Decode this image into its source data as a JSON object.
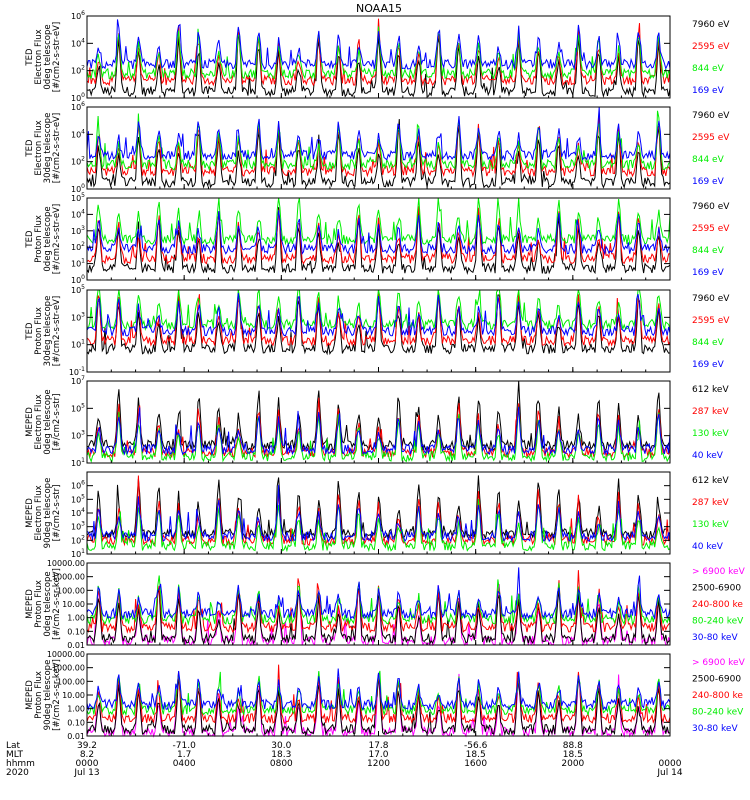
{
  "title": "NOAA15",
  "colors": {
    "black": "#000000",
    "blue": "#0000ff",
    "green": "#00ee00",
    "red": "#ff0000",
    "magenta": "#ff00ff"
  },
  "chart_data": [
    {
      "type": "line",
      "ylabel": [
        "TED",
        "Electron Flux",
        "0deg telescope",
        "[#/cm2-s-str-eV]"
      ],
      "yscale": "log",
      "ylim": [
        1,
        1000000
      ],
      "yticks": [
        {
          "v": 1,
          "e": "0"
        },
        {
          "v": 100,
          "e": "2"
        },
        {
          "v": 10000,
          "e": "4"
        },
        {
          "v": 1000000,
          "e": "6"
        }
      ],
      "series": [
        {
          "name": "7960 eV",
          "color": "black",
          "base": 3
        },
        {
          "name": "2595 eV",
          "color": "red",
          "base": 20
        },
        {
          "name": "844 eV",
          "color": "green",
          "base": 60
        },
        {
          "name": "169 eV",
          "color": "blue",
          "base": 300
        }
      ]
    },
    {
      "type": "line",
      "ylabel": [
        "TED",
        "Electron Flux",
        "30deg telescope",
        "[#/cm2-s-str-eV]"
      ],
      "yscale": "log",
      "ylim": [
        1,
        1000000
      ],
      "yticks": [
        {
          "v": 1,
          "e": "0"
        },
        {
          "v": 100,
          "e": "2"
        },
        {
          "v": 10000,
          "e": "4"
        },
        {
          "v": 1000000,
          "e": "6"
        }
      ],
      "series": [
        {
          "name": "7960 eV",
          "color": "black",
          "base": 3
        },
        {
          "name": "2595 eV",
          "color": "red",
          "base": 20
        },
        {
          "name": "844 eV",
          "color": "green",
          "base": 60
        },
        {
          "name": "169 eV",
          "color": "blue",
          "base": 300
        }
      ]
    },
    {
      "type": "line",
      "ylabel": [
        "TED",
        "Proton Flux",
        "0deg telescope",
        "[#/cm2-s-str-eV]"
      ],
      "yscale": "log",
      "ylim": [
        1,
        100000
      ],
      "yticks": [
        {
          "v": 1,
          "e": "0"
        },
        {
          "v": 10,
          "e": "1"
        },
        {
          "v": 100,
          "e": "2"
        },
        {
          "v": 1000,
          "e": "3"
        },
        {
          "v": 10000,
          "e": "4"
        },
        {
          "v": 100000,
          "e": "5"
        }
      ],
      "series": [
        {
          "name": "7960 eV",
          "color": "black",
          "base": 5
        },
        {
          "name": "2595 eV",
          "color": "red",
          "base": 20
        },
        {
          "name": "844 eV",
          "color": "green",
          "base": 300
        },
        {
          "name": "169 eV",
          "color": "blue",
          "base": 80
        }
      ]
    },
    {
      "type": "line",
      "ylabel": [
        "TED",
        "Proton Flux",
        "30deg telescope",
        "[#/cm2-s-str-eV]"
      ],
      "yscale": "log",
      "ylim": [
        0.1,
        100000
      ],
      "yticks": [
        {
          "v": 0.1,
          "e": "-1"
        },
        {
          "v": 10,
          "e": "1"
        },
        {
          "v": 1000,
          "e": "3"
        },
        {
          "v": 100000,
          "e": "5"
        }
      ],
      "series": [
        {
          "name": "7960 eV",
          "color": "black",
          "base": 5
        },
        {
          "name": "2595 eV",
          "color": "red",
          "base": 20
        },
        {
          "name": "844 eV",
          "color": "green",
          "base": 300
        },
        {
          "name": "169 eV",
          "color": "blue",
          "base": 100
        }
      ]
    },
    {
      "type": "line",
      "ylabel": [
        "MEPED",
        "Electron Flux",
        "0deg telescope",
        "[#/cm2-s-str]"
      ],
      "yscale": "log",
      "ylim": [
        10,
        10000000
      ],
      "yticks": [
        {
          "v": 10,
          "e": "1"
        },
        {
          "v": 1000,
          "e": "3"
        },
        {
          "v": 100000,
          "e": "5"
        },
        {
          "v": 10000000,
          "e": "7"
        }
      ],
      "series": [
        {
          "name": "612 keV",
          "color": "black",
          "base": 200
        },
        {
          "name": "287 keV",
          "color": "red",
          "base": 60
        },
        {
          "name": "130 keV",
          "color": "green",
          "base": 30
        },
        {
          "name": "40 keV",
          "color": "blue",
          "base": 100
        }
      ]
    },
    {
      "type": "line",
      "ylabel": [
        "MEPED",
        "Electron Flux",
        "90deg telescope",
        "[#/cm2-s-str]"
      ],
      "yscale": "log",
      "ylim": [
        10,
        10000000
      ],
      "yticks": [
        {
          "v": 10,
          "e": "1"
        },
        {
          "v": 100,
          "e": "2"
        },
        {
          "v": 1000,
          "e": "3"
        },
        {
          "v": 10000,
          "e": "4"
        },
        {
          "v": 100000,
          "e": "5"
        },
        {
          "v": 1000000,
          "e": "6"
        }
      ],
      "series": [
        {
          "name": "612 keV",
          "color": "black",
          "base": 300
        },
        {
          "name": "287 keV",
          "color": "red",
          "base": 100
        },
        {
          "name": "130 keV",
          "color": "green",
          "base": 40
        },
        {
          "name": "40 keV",
          "color": "blue",
          "base": 200
        }
      ]
    },
    {
      "type": "line",
      "ylabel": [
        "MEPED",
        "Proton Flux",
        "0deg telescope",
        "[#/cm2-s-sr-keV]"
      ],
      "yscale": "log",
      "ylim": [
        0.01,
        10000
      ],
      "yticks": [
        {
          "v": 0.01,
          "t": "0.01"
        },
        {
          "v": 0.1,
          "t": "0.10"
        },
        {
          "v": 1,
          "t": "1.00"
        },
        {
          "v": 10,
          "t": "10.00"
        },
        {
          "v": 100,
          "t": "100.00"
        },
        {
          "v": 1000,
          "t": "1000.00"
        },
        {
          "v": 10000,
          "t": "10000.00"
        }
      ],
      "series": [
        {
          "name": "> 6900 keV",
          "color": "magenta",
          "base": 0.02
        },
        {
          "name": "2500-6900",
          "color": "black",
          "base": 0.03
        },
        {
          "name": "240-800 ke",
          "color": "red",
          "base": 0.2
        },
        {
          "name": "80-240 keV",
          "color": "green",
          "base": 0.8
        },
        {
          "name": "30-80 keV",
          "color": "blue",
          "base": 2
        }
      ]
    },
    {
      "type": "line",
      "ylabel": [
        "MEPED",
        "Proton Flux",
        "90deg telescope",
        "[#/cm2-s-sr-keV]"
      ],
      "yscale": "log",
      "ylim": [
        0.01,
        10000
      ],
      "yticks": [
        {
          "v": 0.01,
          "t": "0.01"
        },
        {
          "v": 0.1,
          "t": "0.10"
        },
        {
          "v": 1,
          "t": "1.00"
        },
        {
          "v": 10,
          "t": "10.00"
        },
        {
          "v": 100,
          "t": "100.00"
        },
        {
          "v": 1000,
          "t": "1000.00"
        },
        {
          "v": 10000,
          "t": "10000.00"
        }
      ],
      "series": [
        {
          "name": "> 6900 keV",
          "color": "magenta",
          "base": 0.02
        },
        {
          "name": "2500-6900",
          "color": "black",
          "base": 0.03
        },
        {
          "name": "240-800 ke",
          "color": "red",
          "base": 0.2
        },
        {
          "name": "80-240 keV",
          "color": "green",
          "base": 0.8
        },
        {
          "name": "30-80 keV",
          "color": "blue",
          "base": 2
        }
      ]
    }
  ],
  "xaxis": {
    "row_labels": [
      "Lat",
      "MLT",
      "hhmm",
      "2020"
    ],
    "ticks": [
      {
        "lat": "39.2",
        "mlt": "8.2",
        "time": "0000",
        "date": "Jul 13"
      },
      {
        "lat": "-71.0",
        "mlt": "1.7",
        "time": "0400",
        "date": ""
      },
      {
        "lat": "30.0",
        "mlt": "18.3",
        "time": "0800",
        "date": ""
      },
      {
        "lat": "17.8",
        "mlt": "17.0",
        "time": "1200",
        "date": ""
      },
      {
        "lat": "-56.6",
        "mlt": "18.5",
        "time": "1600",
        "date": ""
      },
      {
        "lat": "88.8",
        "mlt": "18.5",
        "time": "2000",
        "date": ""
      },
      {
        "lat": "",
        "mlt": "",
        "time": "0000",
        "date": "Jul 14"
      }
    ]
  }
}
